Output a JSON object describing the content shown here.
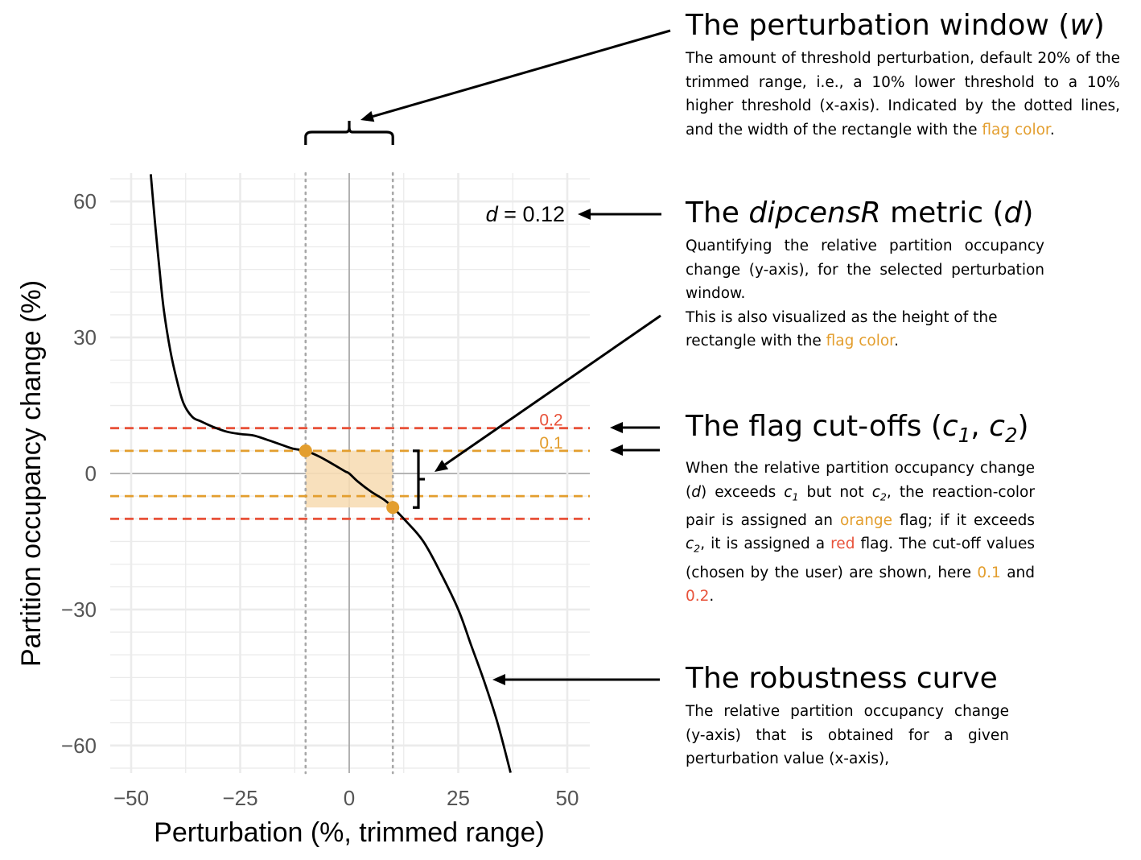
{
  "colors": {
    "orange": "#E39E2E",
    "red": "#E8523A",
    "rect_fill": "#F7DDB5",
    "grid": "#EBEBEB",
    "zero_line": "#AAAAAA",
    "dotted": "#A8A8A8",
    "curve": "#000000",
    "tick_label": "#555555"
  },
  "chart_data": {
    "type": "line",
    "xlabel": "Perturbation (%, trimmed range)",
    "ylabel": "Partition occupancy change (%)",
    "xlim": [
      -55,
      55
    ],
    "ylim": [
      -66,
      66
    ],
    "x_ticks": [
      -50,
      -25,
      0,
      25,
      50
    ],
    "x_tick_labels": [
      "−50",
      "−25",
      "0",
      "25",
      "50"
    ],
    "y_ticks": [
      -60,
      -30,
      0,
      30,
      60
    ],
    "y_tick_labels": [
      "−60",
      "−30",
      "0",
      "30",
      "60"
    ],
    "grid": true,
    "series": [
      {
        "x": [
          -45.5,
          -44.5,
          -43.5,
          -42.5,
          -41,
          -39.5,
          -38,
          -36,
          -34,
          -31,
          -28,
          -25,
          -22,
          -19,
          -16,
          -13,
          -10,
          -7,
          -4,
          -1,
          0,
          2,
          5,
          8,
          10,
          13,
          17,
          21,
          25,
          28,
          31,
          34,
          37
        ],
        "y": [
          66,
          55,
          45,
          36,
          27,
          20.5,
          15.5,
          12.5,
          11.5,
          10.2,
          9.2,
          8.7,
          8.4,
          7.5,
          6.5,
          5.5,
          5,
          3.8,
          2.2,
          0.5,
          0,
          -1.8,
          -4,
          -5.8,
          -7.5,
          -10.5,
          -15,
          -22,
          -30,
          -38,
          -46,
          -55,
          -66
        ]
      }
    ],
    "highlight_points": [
      {
        "x": -10,
        "y": 5
      },
      {
        "x": 10,
        "y": -7.5
      }
    ],
    "perturbation_window": [
      -10,
      10
    ],
    "rectangle": {
      "x": [
        -10,
        10
      ],
      "y": [
        -7.5,
        5
      ]
    },
    "cutoffs": [
      {
        "value": 0.1,
        "label": "0.1",
        "y_pct": 5,
        "color": "orange"
      },
      {
        "value": 0.2,
        "label": "0.2",
        "y_pct": 10,
        "color": "red"
      }
    ],
    "metric_label": {
      "symbol": "d",
      "text": " = 0.12",
      "value": 0.12
    }
  },
  "annotations": {
    "window": {
      "title_pre": "The perturbation window (",
      "title_it": "w",
      "title_post": ")",
      "body_1": "The amount of threshold perturbation, default 20% of the trimmed range, i.e., a 10% lower threshold to a 10% higher threshold (x-axis). Indicated by the dotted lines, and the width of the rectangle with the ",
      "body_hl": "flag color",
      "body_2": "."
    },
    "metric": {
      "title_pre": "The ",
      "title_it": "dipcensR",
      "title_mid": " metric (",
      "title_it2": "d",
      "title_post": ")",
      "body_1": "Quantifying the relative partition occupancy change (y-axis), for the selected perturbation window.",
      "body_2": "This is also visualized as the height of the rectangle with the ",
      "body_hl": "flag color",
      "body_3": "."
    },
    "cutoffs": {
      "title_pre": "The flag cut-offs (",
      "title_c1": "c",
      "title_sub1": "1",
      "title_sep": ", ",
      "title_c2": "c",
      "title_sub2": "2",
      "title_post": ")",
      "body_a": "When the relative partition occupancy change (",
      "body_d": "d",
      "body_b": ") exceeds ",
      "body_c": "c",
      "body_s1": "1",
      "body_c2": " but not ",
      "body_cc": "c",
      "body_s2": "2",
      "body_d2": ", the reaction-color pair is assigned an ",
      "body_orange": "orange",
      "body_e": " flag; if it exceeds ",
      "body_ec": "c",
      "body_es": "2",
      "body_f": ", it is assigned a ",
      "body_red": "red",
      "body_g": " flag. The cut-off values (chosen by the user) are shown, here ",
      "body_v1": "0.1",
      "body_and": " and ",
      "body_v2": "0.2",
      "body_end": "."
    },
    "curve": {
      "title": "The robustness curve",
      "body": "The relative partition occupancy change (y-axis) that is obtained for a given perturbation value (x-axis),"
    }
  }
}
